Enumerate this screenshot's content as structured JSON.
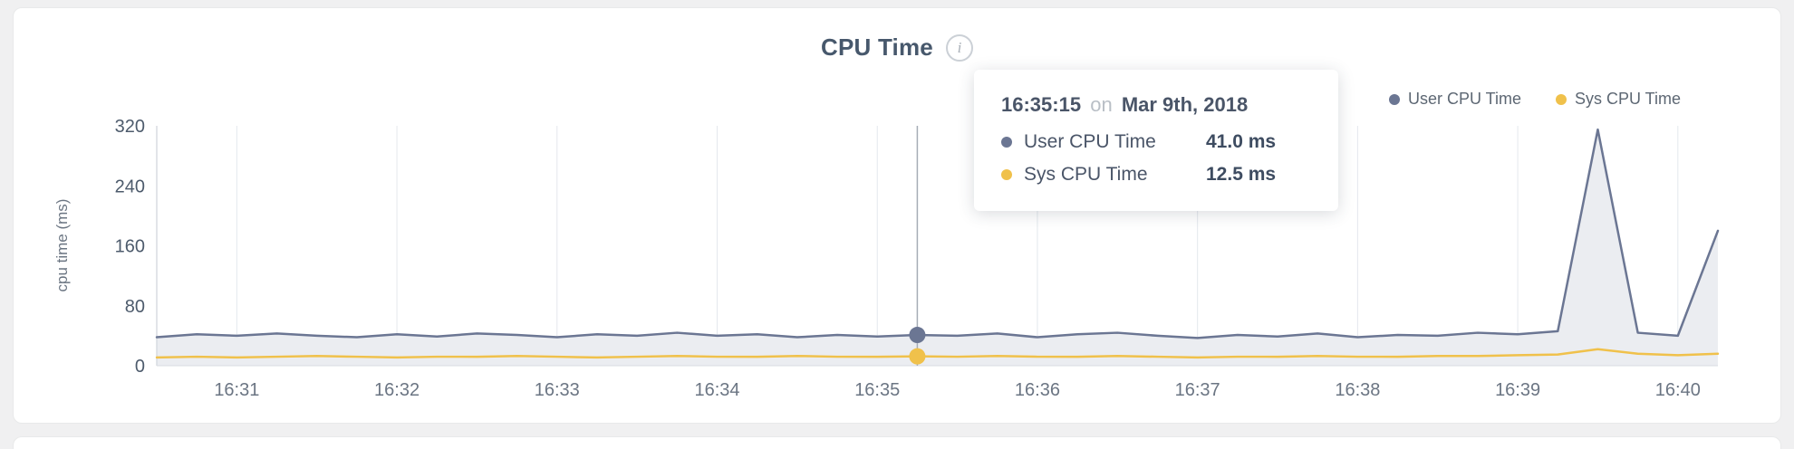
{
  "page": {
    "title": "CPU Time",
    "info_icon": "i"
  },
  "legend": {
    "items": [
      {
        "label": "User CPU Time",
        "color": "#6b7693"
      },
      {
        "label": "Sys CPU Time",
        "color": "#f0c14b"
      }
    ]
  },
  "tooltip": {
    "time": "16:35:15",
    "connector": "on",
    "date": "Mar 9th, 2018",
    "rows": [
      {
        "label": "User CPU Time",
        "value": "41.0 ms",
        "color": "#6b7693"
      },
      {
        "label": "Sys CPU Time",
        "value": "12.5 ms",
        "color": "#f0c14b"
      }
    ]
  },
  "chart_data": {
    "type": "line",
    "title": "CPU Time",
    "xlabel": "",
    "ylabel": "cpu time (ms)",
    "ylim": [
      0,
      320
    ],
    "y_ticks": [
      0,
      80,
      160,
      240,
      320
    ],
    "xlim": [
      30,
      615
    ],
    "x_unit": "seconds after 16:30:00",
    "x_ticks": [
      {
        "t": 60,
        "label": "16:31"
      },
      {
        "t": 120,
        "label": "16:32"
      },
      {
        "t": 180,
        "label": "16:33"
      },
      {
        "t": 240,
        "label": "16:34"
      },
      {
        "t": 300,
        "label": "16:35"
      },
      {
        "t": 360,
        "label": "16:36"
      },
      {
        "t": 420,
        "label": "16:37"
      },
      {
        "t": 480,
        "label": "16:38"
      },
      {
        "t": 540,
        "label": "16:39"
      },
      {
        "t": 600,
        "label": "16:40"
      }
    ],
    "x": [
      30,
      45,
      60,
      75,
      90,
      105,
      120,
      135,
      150,
      165,
      180,
      195,
      210,
      225,
      240,
      255,
      270,
      285,
      300,
      315,
      330,
      345,
      360,
      375,
      390,
      405,
      420,
      435,
      450,
      465,
      480,
      495,
      510,
      525,
      540,
      555,
      570,
      585,
      600,
      615
    ],
    "series": [
      {
        "name": "User CPU Time",
        "color": "#6b7693",
        "fill": "#ebedf1",
        "values": [
          38,
          42,
          40,
          43,
          40,
          38,
          42,
          39,
          43,
          41,
          38,
          42,
          40,
          44,
          40,
          42,
          38,
          41,
          39,
          41,
          40,
          43,
          38,
          42,
          44,
          40,
          37,
          41,
          39,
          43,
          38,
          41,
          40,
          44,
          42,
          46,
          315,
          44,
          40,
          180
        ]
      },
      {
        "name": "Sys CPU Time",
        "color": "#f0c14b",
        "fill": null,
        "values": [
          11,
          12,
          11,
          12,
          13,
          12,
          11,
          12,
          12,
          13,
          12,
          11,
          12,
          13,
          12,
          12,
          13,
          12,
          12,
          12.5,
          12,
          13,
          12,
          12,
          13,
          12,
          11,
          12,
          12,
          13,
          12,
          12,
          13,
          13,
          14,
          15,
          22,
          16,
          14,
          16
        ]
      }
    ],
    "crosshair": {
      "t": 315,
      "time_label": "16:35:15"
    },
    "legend_position": "top-right",
    "grid": "vertical",
    "colors": {
      "grid": "#e4e8ed",
      "axis": "#d8dce2",
      "crosshair": "#a6adb6",
      "x_tick_text": "#6b7583",
      "y_tick_text": "#4d5b6c"
    }
  }
}
